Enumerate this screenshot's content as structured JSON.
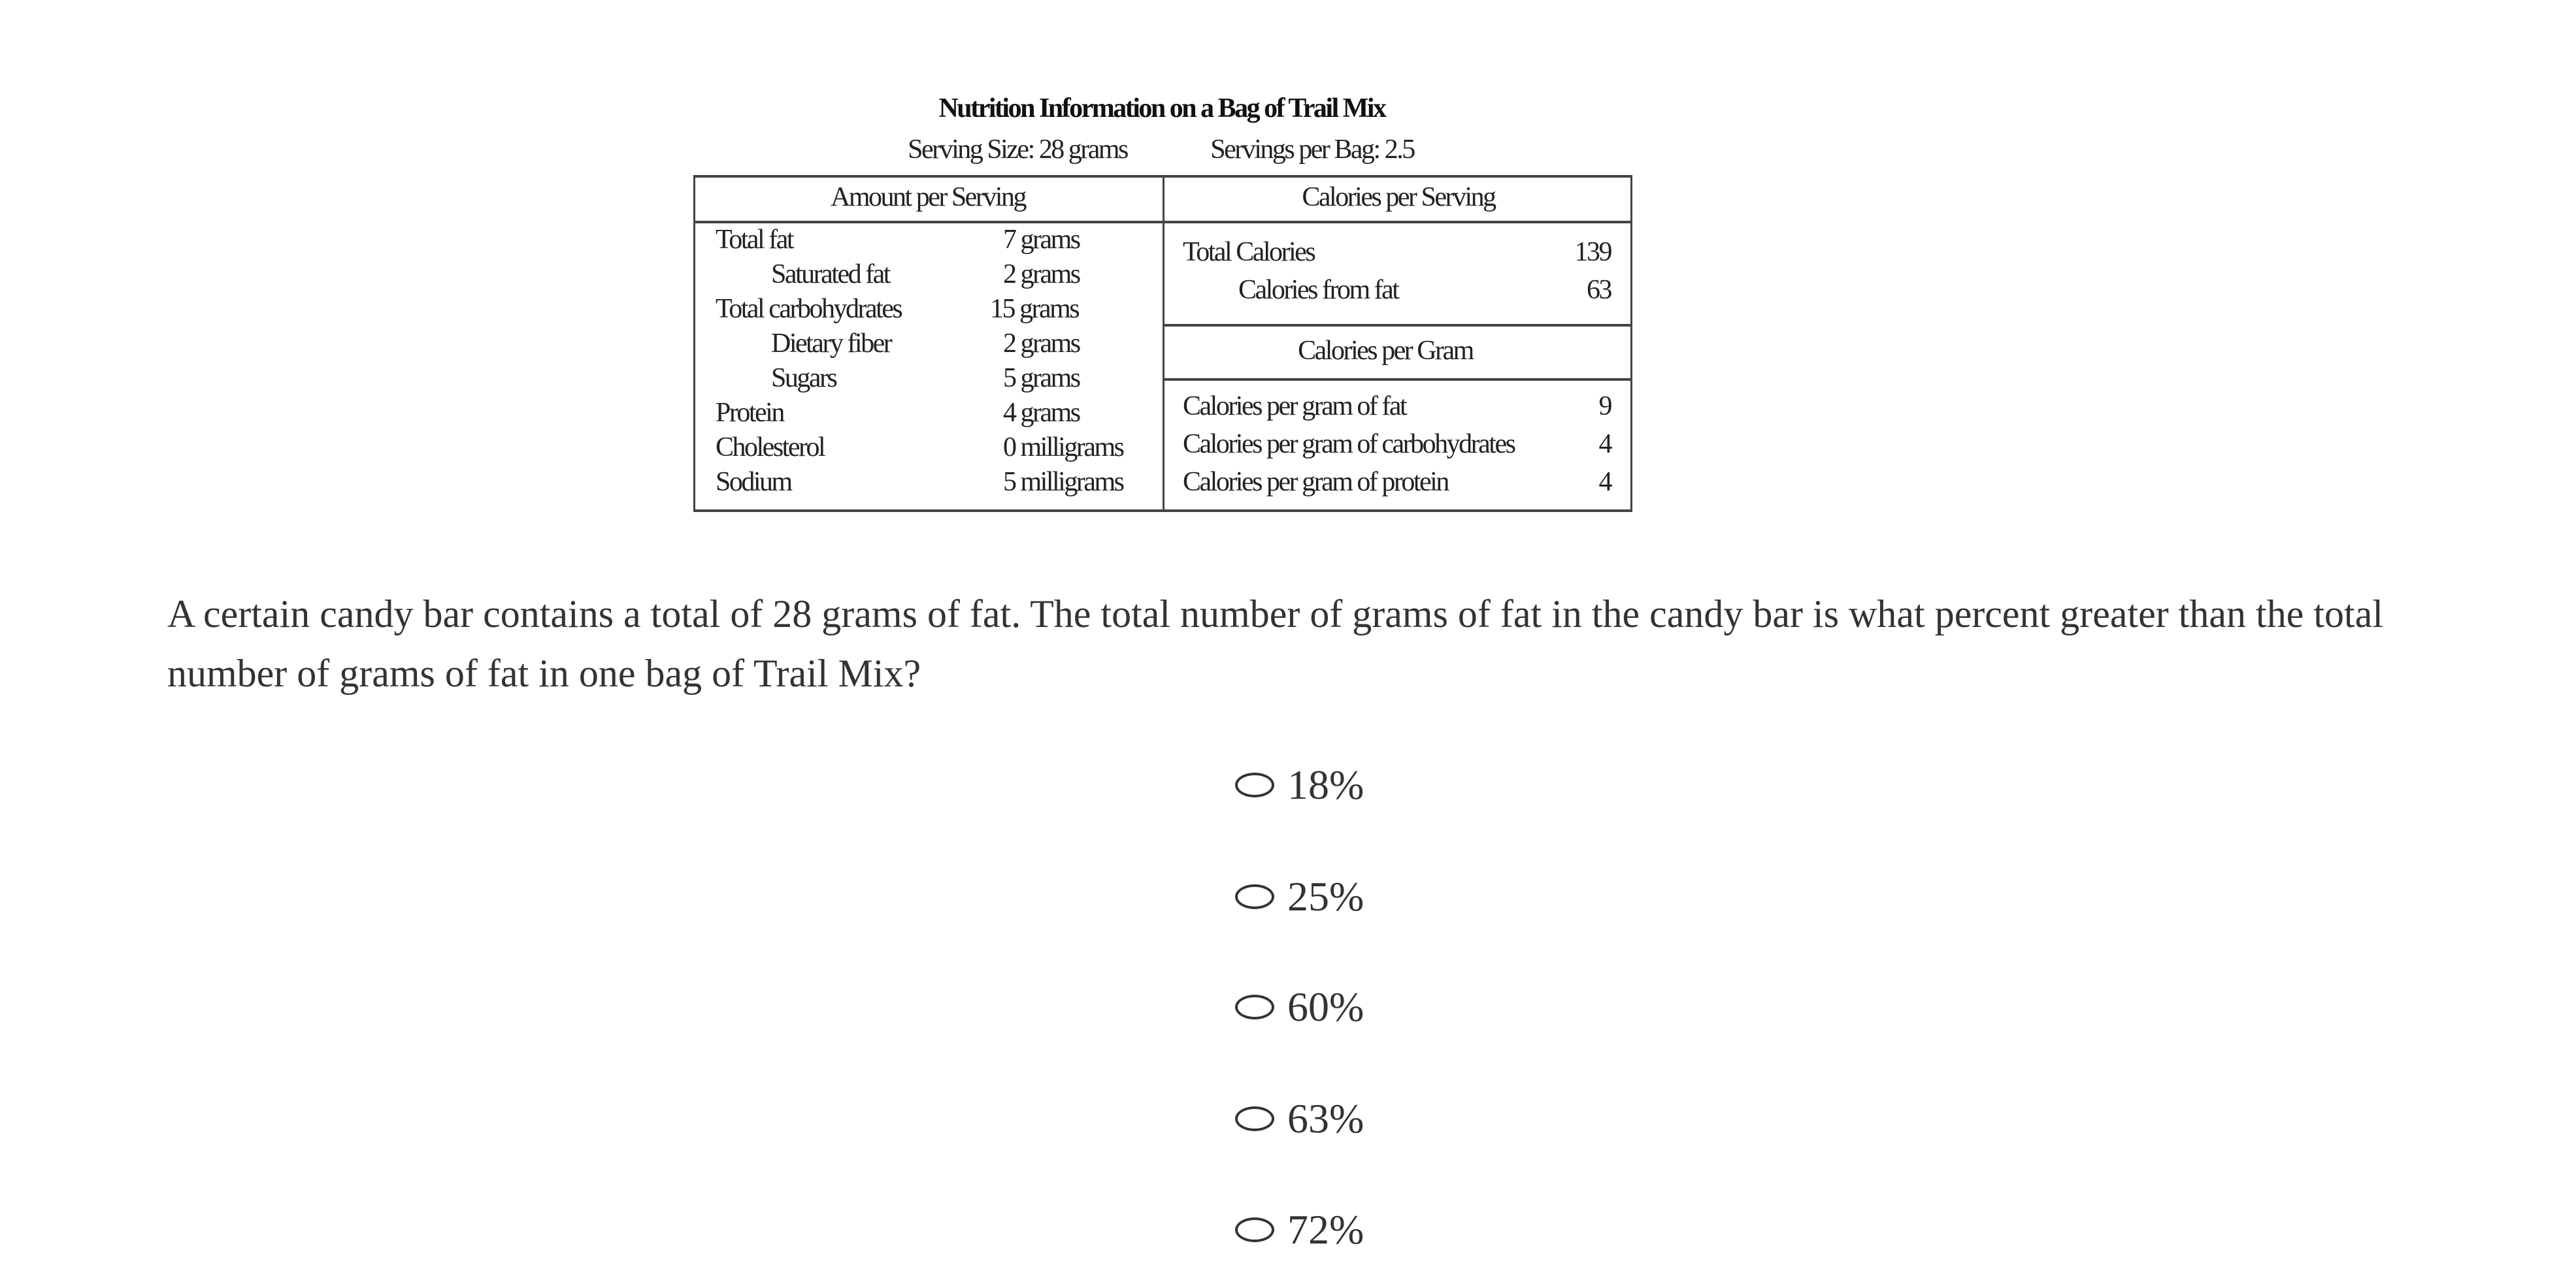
{
  "figure": {
    "title": "Nutrition Information on a Bag of Trail Mix",
    "serving_size": "Serving Size: 28 grams",
    "servings_per_bag": "Servings per Bag: 2.5",
    "left_header": "Amount per Serving",
    "right_header": "Calories per Serving",
    "amounts": [
      {
        "label": "Total fat",
        "value": "7 grams",
        "indent": false
      },
      {
        "label": "Saturated fat",
        "value": "2 grams",
        "indent": true
      },
      {
        "label": "Total carbohydrates",
        "value": "15 grams",
        "indent": false
      },
      {
        "label": "Dietary fiber",
        "value": "2 grams",
        "indent": true
      },
      {
        "label": "Sugars",
        "value": "5 grams",
        "indent": true
      },
      {
        "label": "Protein",
        "value": "4 grams",
        "indent": false
      },
      {
        "label": "Cholesterol",
        "value": "0 milligrams",
        "indent": false
      },
      {
        "label": "Sodium",
        "value": "5 milligrams",
        "indent": false
      }
    ],
    "calories": [
      {
        "label": "Total Calories",
        "value": "139"
      },
      {
        "label": "Calories from fat",
        "value": "63"
      }
    ],
    "per_gram_header": "Calories per Gram",
    "per_gram": [
      {
        "label": "Calories per gram of fat",
        "value": "9"
      },
      {
        "label": "Calories per gram of carbohydrates",
        "value": "4"
      },
      {
        "label": "Calories per gram of protein",
        "value": "4"
      }
    ]
  },
  "question": "A certain candy bar contains a total of 28 grams of fat. The total number of grams of fat in the candy bar is what percent greater than the total number of grams of fat in one bag of Trail Mix?",
  "options": [
    "18%",
    "25%",
    "60%",
    "63%",
    "72%"
  ]
}
